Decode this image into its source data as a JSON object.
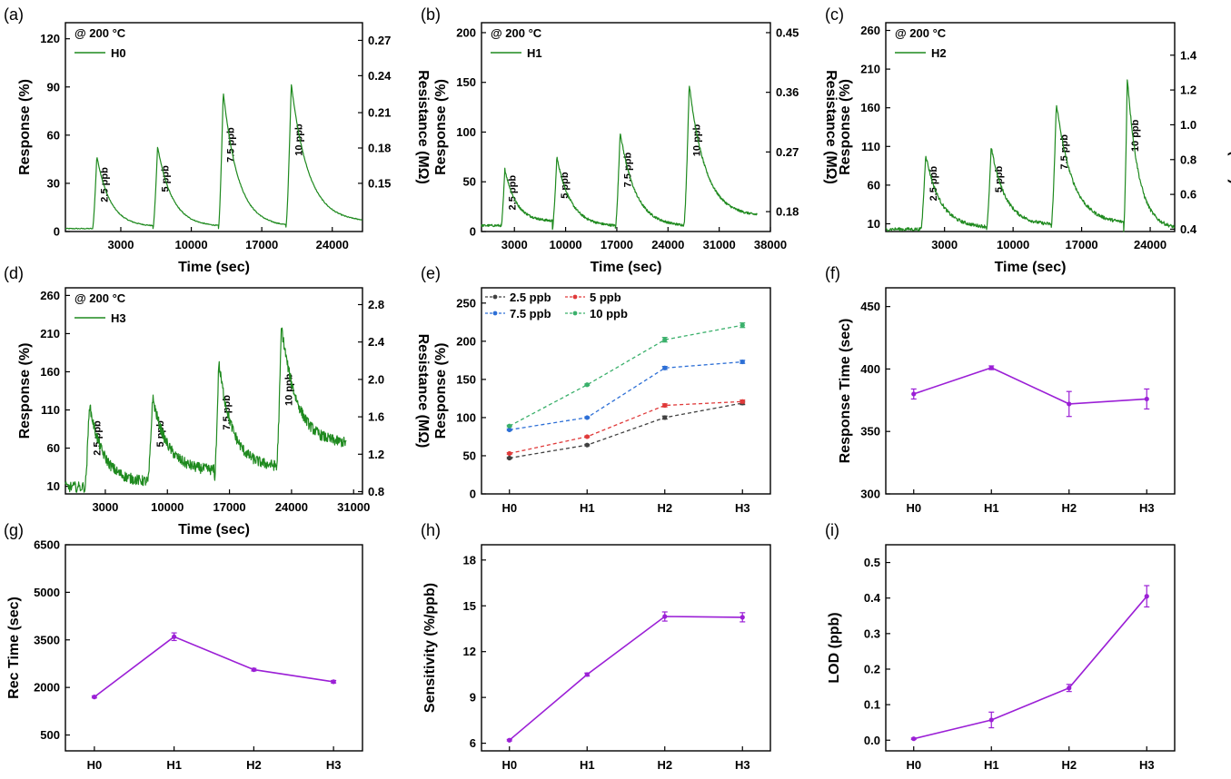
{
  "chart_data": [
    {
      "panel": "(a)",
      "type": "line",
      "condition": "@ 200 °C",
      "legend": "H0",
      "xlabel": "Time (sec)",
      "ylabel": "Response (%)",
      "y2label": "Resistance (MΩ)",
      "xlim": [
        -2500,
        27000
      ],
      "ylim": [
        0,
        130
      ],
      "xticks": [
        "3000",
        "10000",
        "17000",
        "24000"
      ],
      "xtickvals": [
        3000,
        10000,
        17000,
        24000
      ],
      "yticks": [
        "0",
        "30",
        "60",
        "90",
        "120"
      ],
      "ytickvals": [
        0,
        30,
        60,
        90,
        120
      ],
      "y2ticks": [
        "0.15",
        "0.18",
        "0.21",
        "0.24",
        "0.27"
      ],
      "y2tickpos": [
        30,
        52,
        74,
        97,
        119
      ],
      "pulses": [
        {
          "start": 200,
          "peak": 47,
          "base": 3,
          "end": 6200,
          "label": "2.5 ppb"
        },
        {
          "start": 6200,
          "peak": 53,
          "base": 3,
          "end": 12700,
          "label": "5 ppb"
        },
        {
          "start": 12700,
          "peak": 87,
          "base": 3,
          "end": 19400,
          "label": "7.5 ppb"
        },
        {
          "start": 19400,
          "peak": 92,
          "base": 6,
          "end": 27000,
          "label": "10 ppb"
        }
      ],
      "noise": 0.3,
      "color": "#1f8a1f"
    },
    {
      "panel": "(b)",
      "type": "line",
      "condition": "@ 200 °C",
      "legend": "H1",
      "xlabel": "Time (sec)",
      "ylabel": "Response (%)",
      "y2label": "Resistance (MΩ)",
      "xlim": [
        -1500,
        38000
      ],
      "ylim": [
        0,
        210
      ],
      "xticks": [
        "3000",
        "10000",
        "17000",
        "24000",
        "31000",
        "38000"
      ],
      "xtickvals": [
        3000,
        10000,
        17000,
        24000,
        31000,
        38000
      ],
      "yticks": [
        "0",
        "50",
        "100",
        "150",
        "200"
      ],
      "ytickvals": [
        0,
        50,
        100,
        150,
        200
      ],
      "y2ticks": [
        "0.18",
        "0.27",
        "0.36",
        "0.45"
      ],
      "y2tickpos": [
        20,
        80,
        140,
        200
      ],
      "pulses": [
        {
          "start": 1200,
          "peak": 63,
          "base": 10,
          "end": 8200,
          "label": "2.5 ppb"
        },
        {
          "start": 8200,
          "peak": 75,
          "base": 5,
          "end": 16800,
          "label": "5 ppb"
        },
        {
          "start": 16800,
          "peak": 100,
          "base": 5,
          "end": 26200,
          "label": "7.5 ppb"
        },
        {
          "start": 26200,
          "peak": 148,
          "base": 15,
          "end": 36200,
          "label": "10 ppb"
        }
      ],
      "noise": 1.2,
      "color": "#1f8a1f"
    },
    {
      "panel": "(c)",
      "type": "line",
      "condition": "@ 200 °C",
      "legend": "H2",
      "xlabel": "Time (sec)",
      "ylabel": "Response (%)",
      "y2label": "Resistance (MΩ)",
      "xlim": [
        -3000,
        26500
      ],
      "ylim": [
        0,
        270
      ],
      "xticks": [
        "3000",
        "10000",
        "17000",
        "24000"
      ],
      "xtickvals": [
        3000,
        10000,
        17000,
        24000
      ],
      "yticks": [
        "10",
        "60",
        "110",
        "160",
        "210",
        "260"
      ],
      "ytickvals": [
        10,
        60,
        110,
        160,
        210,
        260
      ],
      "y2ticks": [
        "0.4",
        "0.6",
        "0.8",
        "1.0",
        "1.2",
        "1.4"
      ],
      "y2tickpos": [
        3,
        48,
        93,
        138,
        183,
        228
      ],
      "pulses": [
        {
          "start": 600,
          "peak": 100,
          "base": 5,
          "end": 7300,
          "label": "2.5 ppb"
        },
        {
          "start": 7300,
          "peak": 109,
          "base": 8,
          "end": 13900,
          "label": "5 ppb"
        },
        {
          "start": 13900,
          "peak": 166,
          "base": 10,
          "end": 21300,
          "label": "7.5 ppb"
        },
        {
          "start": 21300,
          "peak": 200,
          "base": 3,
          "end": 26500,
          "label": "10 ppb"
        }
      ],
      "noise": 2.2,
      "color": "#1f8a1f"
    },
    {
      "panel": "(d)",
      "type": "line",
      "condition": "@ 200 °C",
      "legend": "H3",
      "xlabel": "Time (sec)",
      "ylabel": "Response (%)",
      "y2label": "Resistance (MΩ)",
      "xlim": [
        -1500,
        32000
      ],
      "ylim": [
        0,
        270
      ],
      "xticks": [
        "3000",
        "10000",
        "17000",
        "24000",
        "31000"
      ],
      "xtickvals": [
        3000,
        10000,
        17000,
        24000,
        31000
      ],
      "yticks": [
        "10",
        "60",
        "110",
        "160",
        "210",
        "260"
      ],
      "ytickvals": [
        10,
        60,
        110,
        160,
        210,
        260
      ],
      "y2ticks": [
        "0.8",
        "1.2",
        "1.6",
        "2.0",
        "2.4",
        "2.8"
      ],
      "y2tickpos": [
        3,
        52,
        101,
        150,
        199,
        248
      ],
      "pulses": [
        {
          "start": 700,
          "peak": 118,
          "base": 15,
          "end": 7800,
          "label": "2.5 ppb"
        },
        {
          "start": 7800,
          "peak": 127,
          "base": 30,
          "end": 15300,
          "label": "5 ppb"
        },
        {
          "start": 15300,
          "peak": 172,
          "base": 35,
          "end": 22300,
          "label": "7.5 ppb"
        },
        {
          "start": 22300,
          "peak": 220,
          "base": 65,
          "end": 30200,
          "label": "10 ppb"
        }
      ],
      "noise": 7,
      "color": "#1f8a1f"
    },
    {
      "panel": "(e)",
      "type": "line",
      "ylabel": "Response (%)",
      "categories": [
        "H0",
        "H1",
        "H2",
        "H3"
      ],
      "ylim": [
        0,
        270
      ],
      "yticks": [
        "0",
        "50",
        "100",
        "150",
        "200",
        "250"
      ],
      "ytickvals": [
        0,
        50,
        100,
        150,
        200,
        250
      ],
      "series": [
        {
          "name": "2.5 ppb",
          "color": "#404040",
          "values": [
            47,
            64,
            100,
            119
          ],
          "err": [
            1,
            1,
            2,
            2
          ]
        },
        {
          "name": "5 ppb",
          "color": "#e03a3a",
          "values": [
            53,
            75,
            116,
            121
          ],
          "err": [
            1,
            1,
            2,
            2
          ]
        },
        {
          "name": "7.5 ppb",
          "color": "#2d6fd6",
          "values": [
            84,
            100,
            165,
            173
          ],
          "err": [
            1,
            1,
            2,
            2
          ]
        },
        {
          "name": "10 ppb",
          "color": "#3ab06b",
          "values": [
            89,
            143,
            202,
            221
          ],
          "err": [
            1,
            1,
            3,
            3
          ]
        }
      ]
    },
    {
      "panel": "(f)",
      "type": "line",
      "ylabel": "Response Time (sec)",
      "categories": [
        "H0",
        "H1",
        "H2",
        "H3"
      ],
      "ylim": [
        300,
        465
      ],
      "yticks": [
        "300",
        "350",
        "400",
        "450"
      ],
      "ytickvals": [
        300,
        350,
        400,
        450
      ],
      "series": [
        {
          "color": "#9b1fd6",
          "values": [
            380,
            401,
            372,
            376
          ],
          "err": [
            4,
            1.5,
            10,
            8
          ]
        }
      ]
    },
    {
      "panel": "(g)",
      "type": "line",
      "ylabel": "Rec Time (sec)",
      "categories": [
        "H0",
        "H1",
        "H2",
        "H3"
      ],
      "ylim": [
        0,
        6500
      ],
      "yticks": [
        "500",
        "2000",
        "3500",
        "5000",
        "6500"
      ],
      "ytickvals": [
        500,
        2000,
        3500,
        5000,
        6500
      ],
      "series": [
        {
          "color": "#9b1fd6",
          "values": [
            1700,
            3600,
            2560,
            2180
          ],
          "err": [
            30,
            120,
            40,
            40
          ]
        }
      ]
    },
    {
      "panel": "(h)",
      "type": "line",
      "ylabel": "Sensitivity (%/ppb)",
      "categories": [
        "H0",
        "H1",
        "H2",
        "H3"
      ],
      "ylim": [
        5.5,
        19
      ],
      "yticks": [
        "6",
        "9",
        "12",
        "15",
        "18"
      ],
      "ytickvals": [
        6,
        9,
        12,
        15,
        18
      ],
      "series": [
        {
          "color": "#9b1fd6",
          "values": [
            6.2,
            10.5,
            14.3,
            14.25
          ],
          "err": [
            0.05,
            0.1,
            0.3,
            0.3
          ]
        }
      ]
    },
    {
      "panel": "(i)",
      "type": "line",
      "ylabel": "LOD (ppb)",
      "categories": [
        "H0",
        "H1",
        "H2",
        "H3"
      ],
      "ylim": [
        -0.03,
        0.55
      ],
      "yticks": [
        "0.0",
        "0.1",
        "0.2",
        "0.3",
        "0.4",
        "0.5"
      ],
      "ytickvals": [
        0,
        0.1,
        0.2,
        0.3,
        0.4,
        0.5
      ],
      "series": [
        {
          "color": "#9b1fd6",
          "values": [
            0.004,
            0.057,
            0.147,
            0.405
          ],
          "err": [
            0.002,
            0.022,
            0.01,
            0.03
          ]
        }
      ]
    }
  ]
}
